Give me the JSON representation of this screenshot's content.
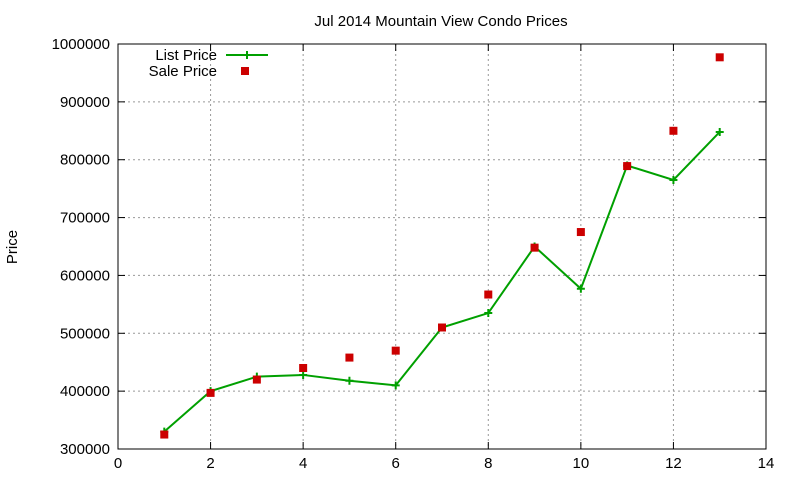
{
  "chart_data": {
    "type": "line",
    "title": "Jul 2014 Mountain View Condo Prices",
    "xlabel": "",
    "ylabel": "Price",
    "xlim": [
      0,
      14
    ],
    "ylim": [
      300000,
      1000000
    ],
    "xticks": [
      0,
      2,
      4,
      6,
      8,
      10,
      12,
      14
    ],
    "yticks": [
      300000,
      400000,
      500000,
      600000,
      700000,
      800000,
      900000,
      1000000
    ],
    "grid": true,
    "legend_position": "top-left",
    "series": [
      {
        "name": "List Price",
        "style": "line with plus markers",
        "color": "#00a000",
        "x": [
          1,
          2,
          3,
          4,
          5,
          6,
          7,
          8,
          9,
          10,
          11,
          12,
          13
        ],
        "y": [
          330000,
          400000,
          425000,
          428000,
          418000,
          410000,
          510000,
          535000,
          650000,
          577000,
          790000,
          765000,
          848000
        ]
      },
      {
        "name": "Sale Price",
        "style": "square markers",
        "color": "#cc0000",
        "x": [
          1,
          2,
          3,
          4,
          5,
          6,
          7,
          8,
          9,
          10,
          11,
          12,
          13
        ],
        "y": [
          325000,
          397000,
          420000,
          440000,
          458000,
          470000,
          510000,
          567000,
          648000,
          675000,
          789000,
          850000,
          977000
        ]
      }
    ]
  }
}
